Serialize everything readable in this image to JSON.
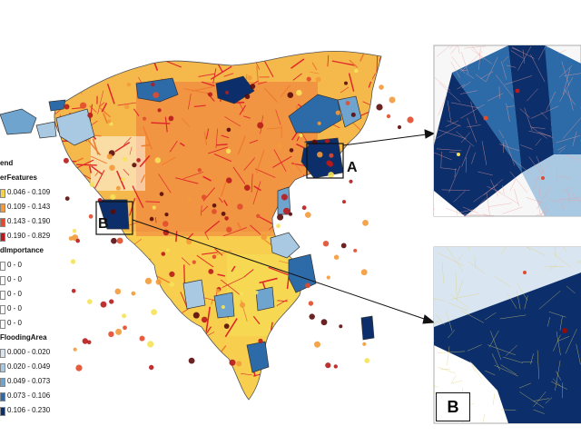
{
  "legend": {
    "title": "end",
    "sections": [
      {
        "heading": "erFeatures",
        "items": [
          {
            "label": "0.046 - 0.109",
            "color": "#f4d24a"
          },
          {
            "label": "0.109 - 0.143",
            "color": "#f39a3a"
          },
          {
            "label": "0.143 - 0.190",
            "color": "#e24b2c"
          },
          {
            "label": "0.190 - 0.829",
            "color": "#b81b1b"
          }
        ]
      },
      {
        "heading": "dImportance",
        "items": [
          {
            "label": "0 - 0",
            "color": "#ffffff"
          },
          {
            "label": "0 - 0",
            "color": "#ffffff"
          },
          {
            "label": "0 - 0",
            "color": "#ffffff"
          },
          {
            "label": "0 - 0",
            "color": "#ffffff"
          },
          {
            "label": "0 - 0",
            "color": "#ffffff"
          }
        ]
      },
      {
        "heading": "FloodingArea",
        "items": [
          {
            "label": "0.000 - 0.020",
            "color": "#d9e6f2"
          },
          {
            "label": "0.020 - 0.049",
            "color": "#a9c8e2"
          },
          {
            "label": "0.049 - 0.073",
            "color": "#6fa4cf"
          },
          {
            "label": "0.073 - 0.106",
            "color": "#2d6ba8"
          },
          {
            "label": "0.106 - 0.230",
            "color": "#0c2f6b"
          }
        ]
      }
    ]
  },
  "callouts": {
    "a_label": "A",
    "b_label": "B",
    "inset_b_label": "B"
  },
  "colors": {
    "road_red": "#e0262a",
    "road_orange": "#f07a2e",
    "land_yellow": "#f6e25a",
    "land_orange": "#f4b04a",
    "flood_dark": "#0c2f6b",
    "flood_mid": "#2d6ba8",
    "flood_light": "#a9c8e2",
    "dot_dark": "#5a0a0a"
  }
}
